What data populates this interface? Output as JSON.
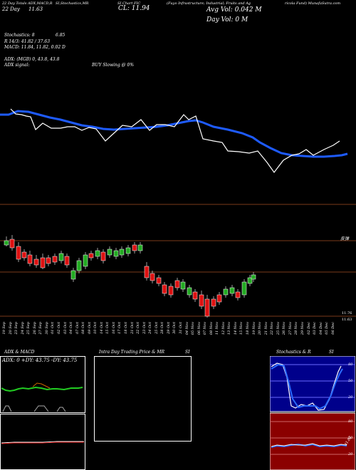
{
  "header": {
    "top_left_line1": "22 Day Totals ADX,MACD,R",
    "top_left_line2": "22 Day",
    "top_left_line2_value": "11.63",
    "title_frag1": "SI,Stochastics,MR",
    "title_frag2": "SI Chart FIC",
    "company": "(Fuyo Infrastructure; Industrial; Fruits and Ag",
    "company_tail": "ricola Fund) MunafaSutra.com",
    "close_label": "CL: 11.94",
    "avg_vol": "Avg Vol: 0.042  M",
    "day_vol": "Day Vol: 0  M"
  },
  "indicators": {
    "stoch": "Stochastics: 8",
    "stoch_value": "6.85",
    "r_line": "R          14/3: 41.82 / 37.63",
    "macd": "MACD: 11.84,  11.82,  0.02  D",
    "adx": "ADX:                   (MGB) 0, 43.8, 43.8",
    "adx_signal": "ADX  signal:",
    "buy_signal": "BUY Slowing @ 0%"
  },
  "candle_panel": {
    "corner_label": "反弹",
    "price_high": "11.76",
    "price_low": "11.63"
  },
  "dates": [
    "19 Sep",
    "20 Sep",
    "23 Sep",
    "24 Sep",
    "25 Sep",
    "26 Sep",
    "27 Sep",
    "30 Sep",
    "01 Oct",
    "02 Oct",
    "03 Oct",
    "04 Oct",
    "07 Oct",
    "08 Oct",
    "09 Oct",
    "10 Oct",
    "14 Oct",
    "15 Oct",
    "16 Oct",
    "17 Oct",
    "18 Oct",
    "21 Oct",
    "22 Oct",
    "23 Oct",
    "24 Oct",
    "25 Oct",
    "28 Oct",
    "29 Oct",
    "30 Oct",
    "31 Oct",
    "04 Nov",
    "05 Nov",
    "06 Nov",
    "07 Nov",
    "08 Nov",
    "11 Nov",
    "12 Nov",
    "13 Nov",
    "14 Nov",
    "15 Nov",
    "18 Nov",
    "19 Nov",
    "20 Nov",
    "21 Nov",
    "22 Nov",
    "25 Nov",
    "26 Nov",
    "27 Nov",
    "28 Nov",
    "29 Nov",
    "02 Dec",
    "03 Dec",
    "04 Dec",
    "05 Dec",
    "06 Dec"
  ],
  "bottom": {
    "adx_title": "ADX  & MACD",
    "adx_values": "ADX: 0  +DY: 43.75  -DY: 43.75",
    "intra_title": "Intra  Day Trading Price  & MR",
    "intra_title_tail": "SI",
    "stoch_title": "Stochastics & R",
    "stoch_title_tail": "SI",
    "stoch_levels": [
      "80",
      "50",
      "20"
    ],
    "rsi_levels": [
      "80",
      "50",
      "20"
    ],
    "rsi_value": "41.82"
  },
  "colors": {
    "background": "#000000",
    "ma_line": "#1e5bff",
    "price_line": "#ffffff",
    "up_candle": "#22aa22",
    "down_candle": "#dd1111",
    "divider": "#7a3a1a",
    "rsi_bg": "#8b0000",
    "stoch_bg": "#00008b"
  }
}
